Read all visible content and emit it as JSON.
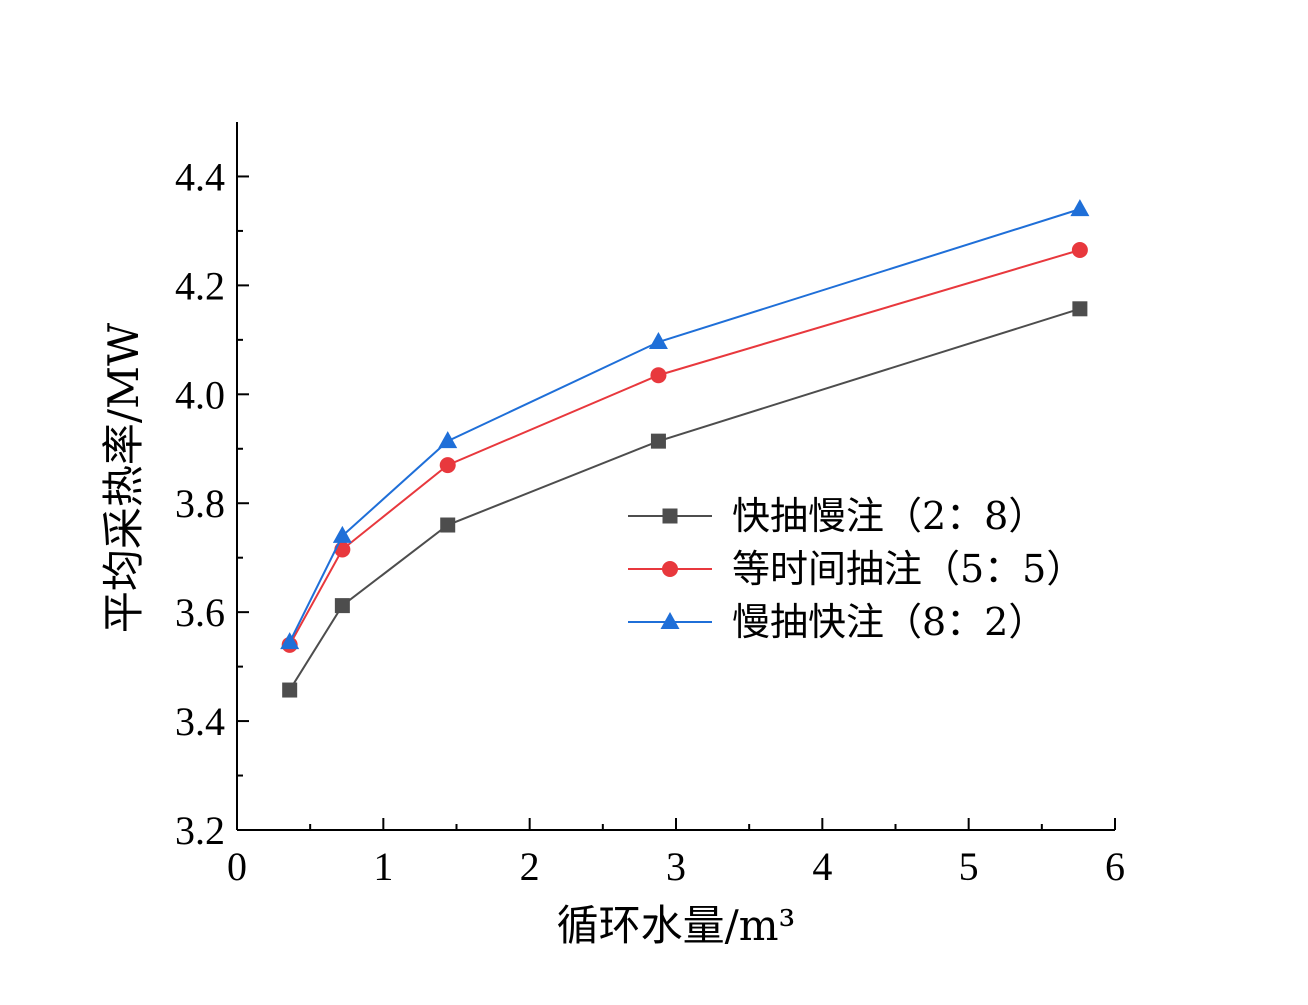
{
  "chart_data": {
    "type": "line",
    "title": "",
    "xlabel": "循环水量/m³",
    "ylabel": "平均采热率/MW",
    "xlim": [
      0,
      6
    ],
    "ylim": [
      3.2,
      4.5
    ],
    "x_ticks": [
      0,
      1,
      2,
      3,
      4,
      5,
      6
    ],
    "y_ticks": [
      3.2,
      3.4,
      3.6,
      3.8,
      4.0,
      4.2,
      4.4
    ],
    "y_tick_labels": [
      "3.2",
      "3.4",
      "3.6",
      "3.8",
      "4.0",
      "4.2",
      "4.4"
    ],
    "x_tick_labels": [
      "0",
      "1",
      "2",
      "3",
      "4",
      "5",
      "6"
    ],
    "grid": false,
    "legend_position": "center-right",
    "x": [
      0.36,
      0.72,
      1.44,
      2.88,
      5.76
    ],
    "series": [
      {
        "name": "快抽慢注（2：8）",
        "color": "#4d4d4d",
        "marker": "square",
        "values": [
          3.457,
          3.612,
          3.76,
          3.914,
          4.157
        ]
      },
      {
        "name": "等时间抽注（5：5）",
        "color": "#e8383d",
        "marker": "circle",
        "values": [
          3.54,
          3.715,
          3.87,
          4.035,
          4.265
        ]
      },
      {
        "name": "慢抽快注（8：2）",
        "color": "#1f6fd8",
        "marker": "triangle",
        "values": [
          3.545,
          3.74,
          3.914,
          4.096,
          4.34
        ]
      }
    ]
  }
}
